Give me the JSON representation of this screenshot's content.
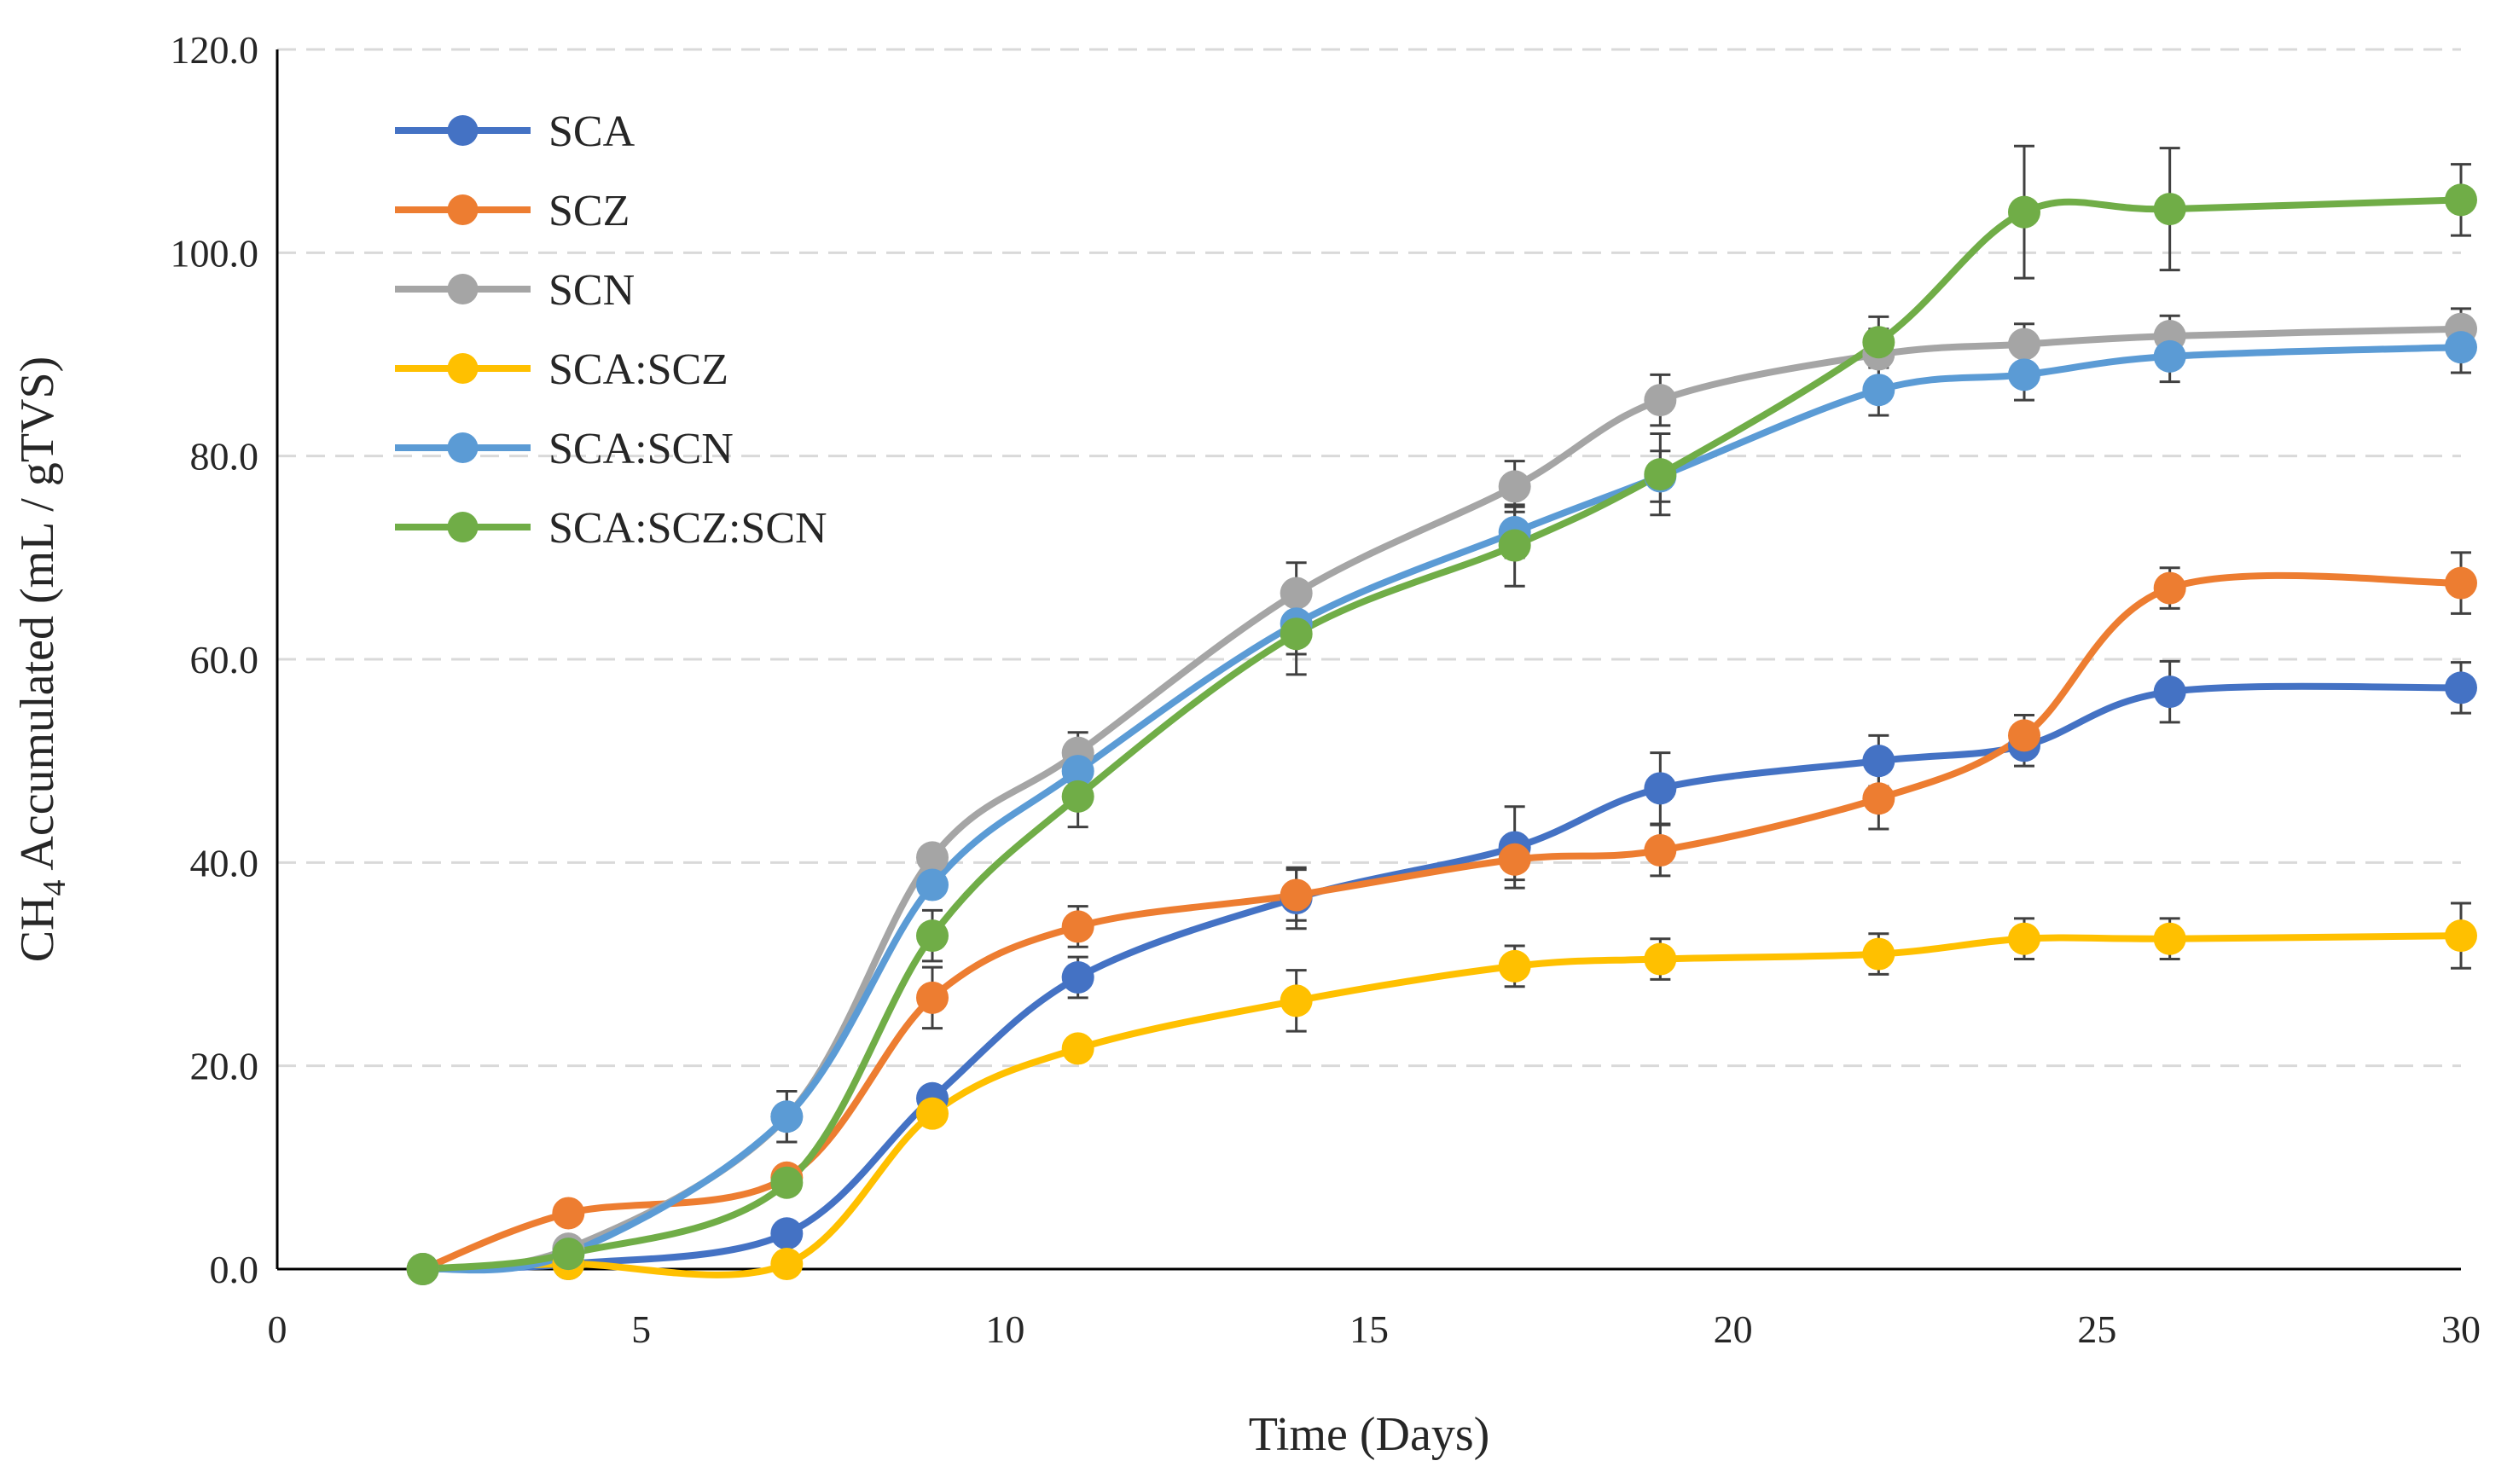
{
  "chart_data": {
    "type": "line",
    "title": "",
    "xlabel": "Time (Days)",
    "ylabel_main": "CH",
    "ylabel_sub": "4",
    "ylabel_rest": " Accumulated  (mL / gTVS)",
    "xlim": [
      0,
      30
    ],
    "ylim": [
      0,
      120
    ],
    "xticks": [
      0,
      5,
      10,
      15,
      20,
      25,
      30
    ],
    "xtick_labels": [
      "0",
      "5",
      "10",
      "15",
      "20",
      "25",
      "30"
    ],
    "yticks": [
      0,
      20,
      40,
      60,
      80,
      100,
      120
    ],
    "ytick_labels": [
      "0.0",
      "20.0",
      "40.0",
      "60.0",
      "80.0",
      "100.0",
      "120.0"
    ],
    "grid": "horizontal-dashed",
    "legend_position": "top-left",
    "x": [
      2,
      4,
      7,
      9,
      11,
      14,
      17,
      19,
      22,
      24,
      26,
      30
    ],
    "series": [
      {
        "name": "SCA",
        "color": "#4472C4",
        "values": [
          0.0,
          0.5,
          3.5,
          16.8,
          28.7,
          36.5,
          41.5,
          47.3,
          50.0,
          51.5,
          56.8,
          57.2
        ],
        "errors": [
          0,
          0,
          0,
          0,
          2.0,
          3.0,
          4.0,
          3.5,
          2.5,
          2.0,
          3.0,
          2.5
        ]
      },
      {
        "name": "SCZ",
        "color": "#ED7D31",
        "values": [
          0.0,
          5.5,
          9.0,
          26.7,
          33.7,
          36.8,
          40.3,
          41.2,
          46.3,
          52.5,
          67.0,
          67.5
        ],
        "errors": [
          0,
          0,
          0,
          3.0,
          2.0,
          2.5,
          2.0,
          2.5,
          3.0,
          2.0,
          2.0,
          3.0
        ]
      },
      {
        "name": "SCN",
        "color": "#A5A5A5",
        "values": [
          0.0,
          2.0,
          15.0,
          40.5,
          50.8,
          66.5,
          77.0,
          85.5,
          90.0,
          91.0,
          91.8,
          92.5
        ],
        "errors": [
          0,
          0,
          2.5,
          0,
          2.0,
          3.0,
          2.5,
          2.5,
          2.5,
          2.0,
          2.0,
          2.0
        ]
      },
      {
        "name": "SCA:SCZ",
        "color": "#FFC000",
        "values": [
          0.0,
          0.5,
          0.5,
          15.3,
          21.7,
          26.4,
          29.8,
          30.5,
          31.0,
          32.5,
          32.5,
          32.8
        ],
        "errors": [
          0,
          0,
          0,
          0,
          0,
          3.0,
          2.0,
          2.0,
          2.0,
          2.0,
          2.0,
          3.2
        ]
      },
      {
        "name": "SCA:SCN",
        "color": "#5B9BD5",
        "values": [
          0.0,
          1.5,
          15.0,
          37.8,
          49.0,
          63.5,
          72.5,
          78.0,
          86.5,
          88.0,
          89.8,
          90.7
        ],
        "errors": [
          0,
          0,
          2.5,
          0,
          2.0,
          3.0,
          2.5,
          2.5,
          2.5,
          2.5,
          2.5,
          2.5
        ]
      },
      {
        "name": "SCA:SCZ:SCN",
        "color": "#70AD47",
        "values": [
          0.0,
          1.5,
          8.5,
          32.8,
          46.5,
          62.5,
          71.2,
          78.2,
          91.2,
          104.0,
          104.3,
          105.2
        ],
        "errors": [
          0,
          0,
          0,
          2.5,
          3.0,
          4.0,
          4.0,
          4.0,
          2.5,
          6.5,
          6.0,
          3.5
        ]
      }
    ]
  }
}
